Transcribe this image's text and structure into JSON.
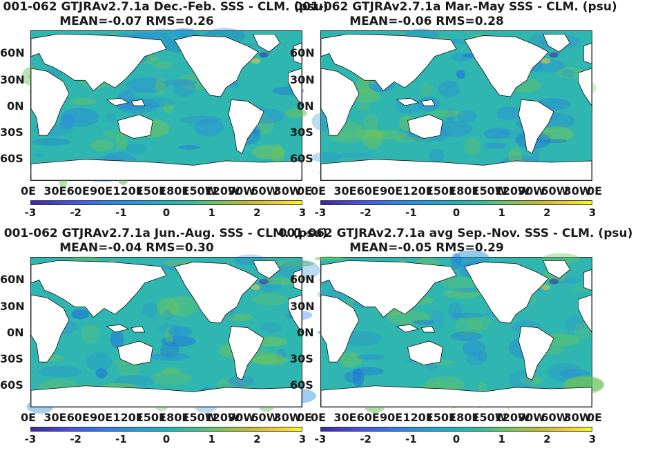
{
  "chart_data": [
    {
      "type": "heatmap",
      "title_line1": "001-062 GTJRAv2.7.1a  Dec.-Feb. SSS - CLM. (psu)",
      "title_line2": "MEAN=-0.07   RMS=0.26",
      "yticks": [
        "60N",
        "30N",
        "0N",
        "30S",
        "60S"
      ],
      "xticks": [
        "0E",
        "30E",
        "60E",
        "90E",
        "120E",
        "150E",
        "180E",
        "150W",
        "120W",
        "90W",
        "60W",
        "30W",
        "0E"
      ],
      "colorbar_ticks": [
        "-3",
        "-2",
        "-1",
        "0",
        "1",
        "2",
        "3"
      ],
      "colorbar_range": [
        -3,
        3
      ]
    },
    {
      "type": "heatmap",
      "title_line1": "001-062 GTJRAv2.7.1a Mar.-May SSS - CLM. (psu)",
      "title_line2": "MEAN=-0.06   RMS=0.28",
      "yticks": [
        "60N",
        "30N",
        "0N",
        "30S",
        "60S"
      ],
      "xticks": [
        "0E",
        "30E",
        "60E",
        "90E",
        "120E",
        "150E",
        "180E",
        "150W",
        "120W",
        "90W",
        "60W",
        "30W",
        "0E"
      ],
      "colorbar_ticks": [
        "-3",
        "-2",
        "-1",
        "0",
        "1",
        "2",
        "3"
      ],
      "colorbar_range": [
        -3,
        3
      ]
    },
    {
      "type": "heatmap",
      "title_line1": "001-062 GTJRAv2.7.1a Jun.-Aug. SSS - CLM. (psu)",
      "title_line2": "MEAN=-0.04   RMS=0.30",
      "yticks": [
        "60N",
        "30N",
        "0N",
        "30S",
        "60S"
      ],
      "xticks": [
        "0E",
        "30E",
        "60E",
        "90E",
        "120E",
        "150E",
        "180E",
        "150W",
        "120W",
        "90W",
        "60W",
        "30W",
        "0E"
      ],
      "colorbar_ticks": [
        "-3",
        "-2",
        "-1",
        "0",
        "1",
        "2",
        "3"
      ],
      "colorbar_range": [
        -3,
        3
      ]
    },
    {
      "type": "heatmap",
      "title_line1": "001-062 GTJRAv2.7.1a avg Sep.-Nov. SSS - CLM. (psu)",
      "title_line2": "MEAN=-0.05   RMS=0.29",
      "yticks": [
        "60N",
        "30N",
        "0N",
        "30S",
        "60S"
      ],
      "xticks": [
        "0E",
        "30E",
        "60E",
        "90E",
        "120E",
        "150E",
        "180E",
        "150W",
        "120W",
        "90W",
        "60W",
        "30W",
        "0E"
      ],
      "colorbar_ticks": [
        "-3",
        "-2",
        "-1",
        "0",
        "1",
        "2",
        "3"
      ],
      "colorbar_range": [
        -3,
        3
      ]
    }
  ],
  "colors": {
    "ocean_base": "#2fb6b0",
    "ocean_low": "#2a8fd6",
    "ocean_high": "#6cc35a",
    "land": "#ffffff"
  }
}
